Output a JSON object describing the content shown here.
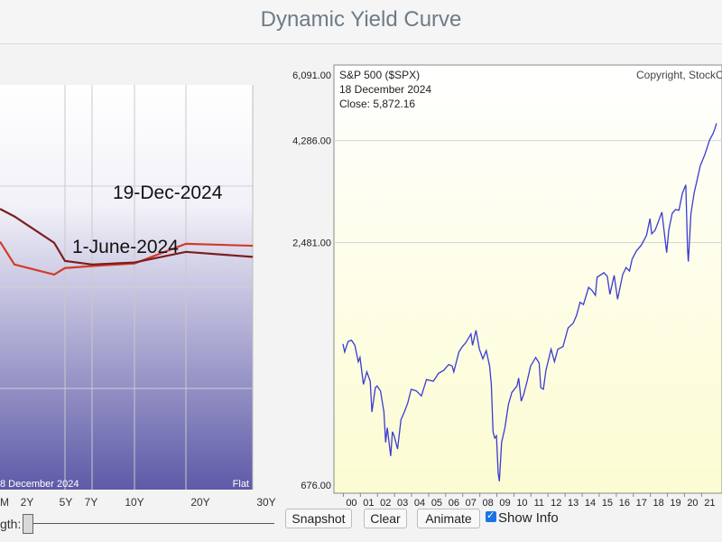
{
  "page": {
    "title": "Dynamic Yield Curve"
  },
  "controls": {
    "slider_label": "gth:",
    "snapshot_label": "Snapshot",
    "clear_label": "Clear",
    "animate_label": "Animate",
    "show_info_label": "Show Info",
    "show_info_checked": true
  },
  "chart_data": [
    {
      "type": "line",
      "categories": [
        "M",
        "2Y",
        "5Y",
        "7Y",
        "10Y",
        "20Y",
        "30Y"
      ],
      "series": [
        {
          "name": "19-Dec-2024",
          "color": "#d23b2a",
          "values": [
            4.45,
            4.25,
            4.38,
            4.42,
            4.47,
            4.86,
            4.82
          ]
        },
        {
          "name": "1-June-2024",
          "color": "#7a1e1e",
          "values": [
            5.4,
            4.88,
            4.52,
            4.45,
            4.49,
            4.7,
            4.6
          ]
        }
      ],
      "left_series_y": [
        4.9,
        5.55
      ],
      "series_labels": [
        "19-Dec-2024",
        "1-June-2024"
      ],
      "info_text": "8  December 2024",
      "shape_text": "Flat",
      "ylim": [
        0,
        8
      ],
      "grid": true,
      "colors": {
        "background_top": "#ffffff",
        "background_bottom": "#5e5aa8",
        "grid": "#c9c9c9"
      }
    },
    {
      "type": "line",
      "title": "S&P 500 ($SPX)",
      "copyright": "Copyright, StockC",
      "info": {
        "date": "18  December 2024",
        "close": "Close: 5,872.16"
      },
      "scale": "log",
      "y_ticks": [
        "6,091.00",
        "4,286.00",
        "2,481.00",
        "676.00"
      ],
      "y_tick_values": [
        6091,
        4286,
        2481,
        676
      ],
      "x_ticks": [
        "00",
        "01",
        "02",
        "03",
        "04",
        "05",
        "06",
        "07",
        "08",
        "09",
        "10",
        "11",
        "12",
        "13",
        "14",
        "15",
        "16",
        "17",
        "18",
        "19",
        "20",
        "21"
      ],
      "x_start_year": 2000,
      "ylim": [
        676,
        6091
      ],
      "grid": true,
      "line_color": "#3b3bd4",
      "series": [
        {
          "points": [
            [
              2000.0,
              1440
            ],
            [
              2000.1,
              1380
            ],
            [
              2000.3,
              1460
            ],
            [
              2000.5,
              1470
            ],
            [
              2000.7,
              1430
            ],
            [
              2000.9,
              1310
            ],
            [
              2001.0,
              1340
            ],
            [
              2001.2,
              1160
            ],
            [
              2001.4,
              1240
            ],
            [
              2001.6,
              1180
            ],
            [
              2001.7,
              1000
            ],
            [
              2001.9,
              1140
            ],
            [
              2002.0,
              1150
            ],
            [
              2002.2,
              1120
            ],
            [
              2002.4,
              1000
            ],
            [
              2002.5,
              850
            ],
            [
              2002.6,
              920
            ],
            [
              2002.8,
              790
            ],
            [
              2002.9,
              900
            ],
            [
              2003.0,
              880
            ],
            [
              2003.2,
              820
            ],
            [
              2003.4,
              960
            ],
            [
              2003.6,
              1000
            ],
            [
              2003.8,
              1050
            ],
            [
              2004.0,
              1130
            ],
            [
              2004.3,
              1120
            ],
            [
              2004.6,
              1090
            ],
            [
              2004.9,
              1190
            ],
            [
              2005.3,
              1180
            ],
            [
              2005.6,
              1230
            ],
            [
              2005.9,
              1250
            ],
            [
              2006.2,
              1290
            ],
            [
              2006.4,
              1280
            ],
            [
              2006.5,
              1240
            ],
            [
              2006.8,
              1380
            ],
            [
              2007.0,
              1420
            ],
            [
              2007.2,
              1450
            ],
            [
              2007.5,
              1520
            ],
            [
              2007.6,
              1430
            ],
            [
              2007.8,
              1550
            ],
            [
              2008.0,
              1400
            ],
            [
              2008.2,
              1330
            ],
            [
              2008.4,
              1390
            ],
            [
              2008.6,
              1280
            ],
            [
              2008.7,
              1160
            ],
            [
              2008.8,
              900
            ],
            [
              2008.9,
              870
            ],
            [
              2009.0,
              880
            ],
            [
              2009.1,
              720
            ],
            [
              2009.17,
              690
            ],
            [
              2009.3,
              850
            ],
            [
              2009.5,
              920
            ],
            [
              2009.7,
              1040
            ],
            [
              2009.9,
              1110
            ],
            [
              2010.2,
              1150
            ],
            [
              2010.3,
              1200
            ],
            [
              2010.45,
              1060
            ],
            [
              2010.6,
              1100
            ],
            [
              2010.8,
              1180
            ],
            [
              2011.0,
              1280
            ],
            [
              2011.3,
              1340
            ],
            [
              2011.5,
              1300
            ],
            [
              2011.6,
              1140
            ],
            [
              2011.75,
              1130
            ],
            [
              2011.9,
              1250
            ],
            [
              2012.2,
              1400
            ],
            [
              2012.4,
              1310
            ],
            [
              2012.6,
              1400
            ],
            [
              2012.9,
              1420
            ],
            [
              2013.2,
              1570
            ],
            [
              2013.5,
              1610
            ],
            [
              2013.7,
              1680
            ],
            [
              2013.9,
              1800
            ],
            [
              2014.1,
              1780
            ],
            [
              2014.4,
              1950
            ],
            [
              2014.6,
              1920
            ],
            [
              2014.8,
              1870
            ],
            [
              2014.9,
              2060
            ],
            [
              2015.3,
              2110
            ],
            [
              2015.5,
              2070
            ],
            [
              2015.65,
              1880
            ],
            [
              2015.9,
              2080
            ],
            [
              2016.1,
              1830
            ],
            [
              2016.4,
              2090
            ],
            [
              2016.6,
              2170
            ],
            [
              2016.8,
              2130
            ],
            [
              2016.95,
              2270
            ],
            [
              2017.2,
              2370
            ],
            [
              2017.5,
              2450
            ],
            [
              2017.8,
              2580
            ],
            [
              2018.0,
              2820
            ],
            [
              2018.1,
              2600
            ],
            [
              2018.3,
              2650
            ],
            [
              2018.7,
              2920
            ],
            [
              2018.8,
              2700
            ],
            [
              2018.98,
              2350
            ],
            [
              2019.1,
              2650
            ],
            [
              2019.3,
              2900
            ],
            [
              2019.5,
              2960
            ],
            [
              2019.7,
              2950
            ],
            [
              2019.9,
              3230
            ],
            [
              2020.1,
              3380
            ],
            [
              2020.2,
              2400
            ],
            [
              2020.25,
              2240
            ],
            [
              2020.4,
              2900
            ],
            [
              2020.6,
              3250
            ],
            [
              2020.7,
              3380
            ],
            [
              2020.95,
              3750
            ],
            [
              2021.2,
              3960
            ],
            [
              2021.5,
              4300
            ],
            [
              2021.7,
              4450
            ],
            [
              2021.8,
              4560
            ],
            [
              2021.9,
              4700
            ]
          ]
        }
      ],
      "colors": {
        "background_top": "#ffffff",
        "background_bottom": "#fcfcd2",
        "grid": "#d4d4d4",
        "axis_text": "#222222"
      }
    }
  ]
}
